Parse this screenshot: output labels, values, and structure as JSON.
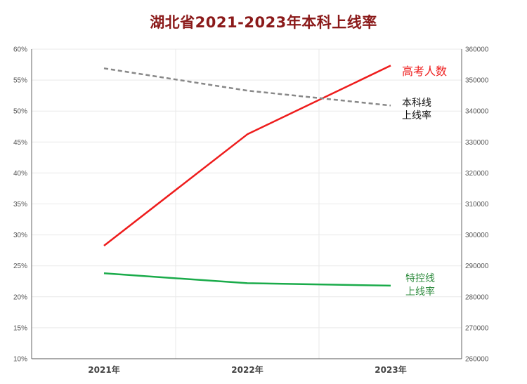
{
  "chart_data": {
    "type": "line",
    "title": "湖北省2021-2023年本科上线率",
    "categories": [
      "2021年",
      "2022年",
      "2023年"
    ],
    "y_left": {
      "range": [
        0.1,
        0.6
      ],
      "ticks": [
        "10%",
        "15%",
        "20%",
        "25%",
        "30%",
        "35%",
        "40%",
        "45%",
        "50%",
        "55%",
        "60%"
      ]
    },
    "y_right": {
      "range": [
        260000,
        360000
      ],
      "ticks": [
        "260000",
        "270000",
        "280000",
        "290000",
        "300000",
        "310000",
        "320000",
        "330000",
        "340000",
        "350000",
        "360000"
      ]
    },
    "grid": true,
    "series": [
      {
        "name": "高考人数",
        "axis": "right",
        "style": "solid",
        "color": "#ee1c1c",
        "values": [
          296500,
          332500,
          354700
        ]
      },
      {
        "name": "本科线上线率",
        "axis": "left",
        "style": "dashed",
        "color": "#888888",
        "values": [
          0.569,
          0.533,
          0.509
        ]
      },
      {
        "name": "特控线上线率",
        "axis": "left",
        "style": "solid",
        "color": "#1aab4a",
        "values": [
          0.238,
          0.222,
          0.218
        ]
      }
    ],
    "series_labels": {
      "高考人数": [
        "高考人数"
      ],
      "本科线上线率": [
        "本科线",
        "上线率"
      ],
      "特控线上线率": [
        "特控线",
        "上线率"
      ]
    },
    "label_colors": {
      "高考人数": "#ee1c1c",
      "本科线上线率": "#111111",
      "特控线上线率": "#2e8b3e"
    }
  }
}
